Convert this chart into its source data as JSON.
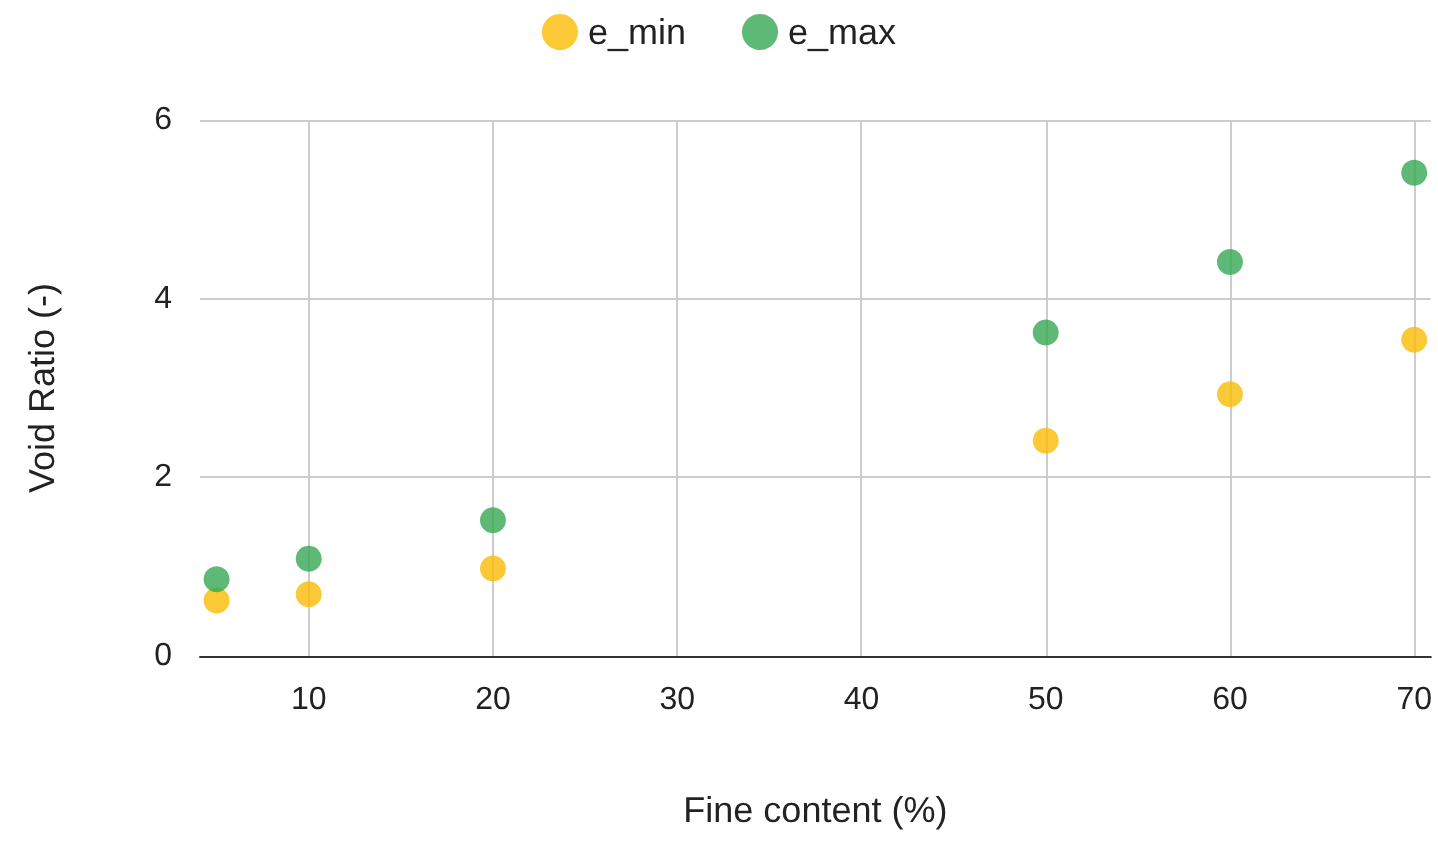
{
  "chart_data": {
    "type": "scatter",
    "xlabel": "Fine content (%)",
    "ylabel": "Void Ratio (-)",
    "x": [
      5,
      10,
      20,
      50,
      60,
      70
    ],
    "series": [
      {
        "name": "e_min",
        "color": "#fbbc04",
        "values": [
          0.62,
          0.69,
          0.98,
          2.41,
          2.93,
          3.54
        ]
      },
      {
        "name": "e_max",
        "color": "#34a853",
        "values": [
          0.86,
          1.09,
          1.52,
          3.62,
          4.41,
          5.41
        ]
      }
    ],
    "xlim": [
      4.1,
      70.9
    ],
    "xticks": [
      10,
      20,
      30,
      40,
      50,
      60,
      70
    ],
    "ylim": [
      0,
      6
    ],
    "yticks": [
      0,
      2,
      4,
      6
    ],
    "grid": true,
    "legend": "top",
    "marker": "circle"
  }
}
